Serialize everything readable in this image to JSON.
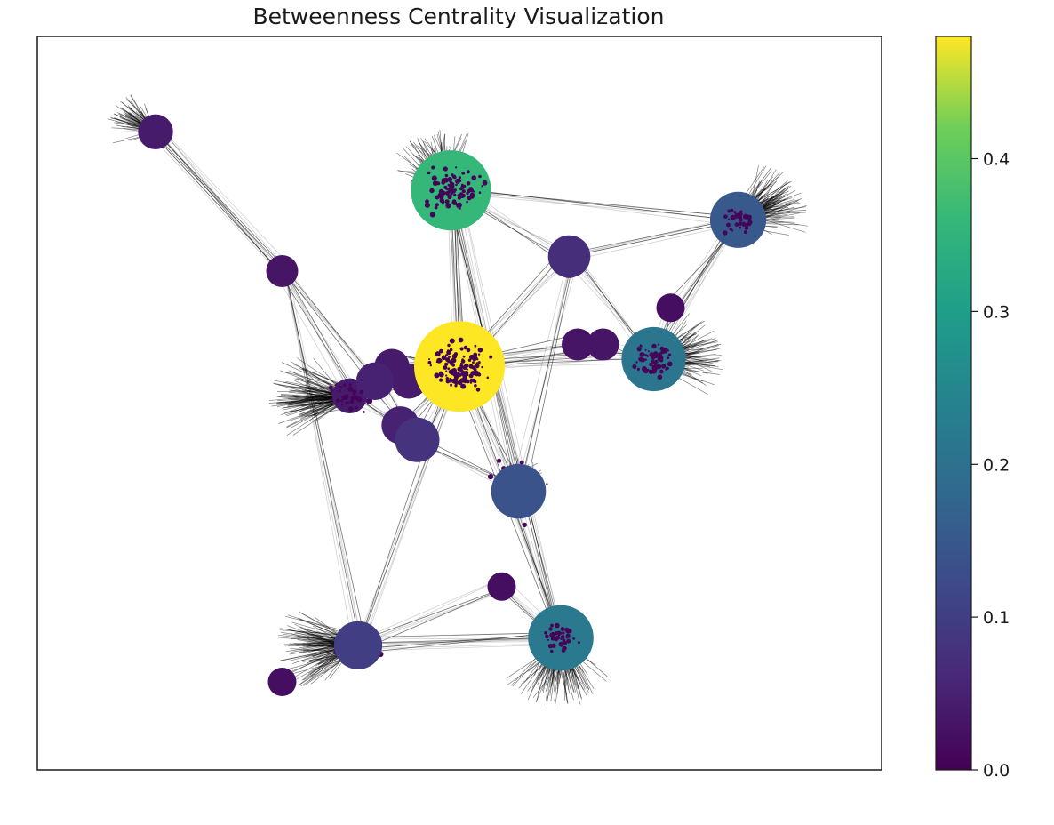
{
  "chart_data": {
    "type": "network",
    "title": "Betweenness Centrality Visualization",
    "xlabel": "",
    "ylabel": "",
    "colormap": "viridis",
    "colorbar": {
      "range": [
        0.0,
        0.48
      ],
      "ticks": [
        0.0,
        0.1,
        0.2,
        0.3,
        0.4
      ],
      "tick_labels": [
        "0.0",
        "0.1",
        "0.2",
        "0.3",
        "0.4"
      ]
    },
    "grid": false,
    "axes_ticks_visible": false,
    "xlim": [
      0,
      1
    ],
    "ylim": [
      0,
      1
    ],
    "hubs": [
      {
        "id": "h1",
        "x": 0.5,
        "y": 0.55,
        "centrality": 0.48
      },
      {
        "id": "h2",
        "x": 0.49,
        "y": 0.79,
        "centrality": 0.36
      },
      {
        "id": "h3",
        "x": 0.73,
        "y": 0.56,
        "centrality": 0.21
      },
      {
        "id": "h4",
        "x": 0.62,
        "y": 0.18,
        "centrality": 0.22
      },
      {
        "id": "h5",
        "x": 0.83,
        "y": 0.75,
        "centrality": 0.15
      },
      {
        "id": "h6",
        "x": 0.57,
        "y": 0.38,
        "centrality": 0.14
      },
      {
        "id": "h7",
        "x": 0.38,
        "y": 0.17,
        "centrality": 0.1
      },
      {
        "id": "h8",
        "x": 0.45,
        "y": 0.45,
        "centrality": 0.08
      },
      {
        "id": "h9",
        "x": 0.63,
        "y": 0.7,
        "centrality": 0.07
      },
      {
        "id": "h10",
        "x": 0.43,
        "y": 0.47,
        "centrality": 0.05
      },
      {
        "id": "h11",
        "x": 0.14,
        "y": 0.87,
        "centrality": 0.04
      },
      {
        "id": "h12",
        "x": 0.29,
        "y": 0.68,
        "centrality": 0.03
      },
      {
        "id": "h13",
        "x": 0.37,
        "y": 0.51,
        "centrality": 0.04
      },
      {
        "id": "h14",
        "x": 0.4,
        "y": 0.53,
        "centrality": 0.05
      },
      {
        "id": "h15",
        "x": 0.44,
        "y": 0.53,
        "centrality": 0.04
      },
      {
        "id": "h16",
        "x": 0.64,
        "y": 0.58,
        "centrality": 0.03
      },
      {
        "id": "h17",
        "x": 0.67,
        "y": 0.58,
        "centrality": 0.03
      },
      {
        "id": "h18",
        "x": 0.75,
        "y": 0.63,
        "centrality": 0.02
      },
      {
        "id": "h19",
        "x": 0.63,
        "y": 0.69,
        "centrality": 0.02
      },
      {
        "id": "h20",
        "x": 0.55,
        "y": 0.25,
        "centrality": 0.02
      },
      {
        "id": "h21",
        "x": 0.29,
        "y": 0.12,
        "centrality": 0.02
      },
      {
        "id": "h22",
        "x": 0.42,
        "y": 0.55,
        "centrality": 0.04
      }
    ],
    "edges": [
      [
        "h1",
        "h2"
      ],
      [
        "h1",
        "h3"
      ],
      [
        "h1",
        "h4"
      ],
      [
        "h1",
        "h6"
      ],
      [
        "h1",
        "h8"
      ],
      [
        "h1",
        "h9"
      ],
      [
        "h1",
        "h10"
      ],
      [
        "h1",
        "h13"
      ],
      [
        "h1",
        "h16"
      ],
      [
        "h1",
        "h17"
      ],
      [
        "h1",
        "h22"
      ],
      [
        "h1",
        "h15"
      ],
      [
        "h2",
        "h9"
      ],
      [
        "h2",
        "h5"
      ],
      [
        "h2",
        "h6"
      ],
      [
        "h2",
        "h1"
      ],
      [
        "h3",
        "h5"
      ],
      [
        "h3",
        "h17"
      ],
      [
        "h3",
        "h18"
      ],
      [
        "h5",
        "h18"
      ],
      [
        "h5",
        "h9"
      ],
      [
        "h6",
        "h4"
      ],
      [
        "h6",
        "h8"
      ],
      [
        "h4",
        "h20"
      ],
      [
        "h4",
        "h7"
      ],
      [
        "h7",
        "h12"
      ],
      [
        "h7",
        "h20"
      ],
      [
        "h7",
        "h4"
      ],
      [
        "h12",
        "h11"
      ],
      [
        "h12",
        "h13"
      ],
      [
        "h12",
        "h14"
      ],
      [
        "h8",
        "h14"
      ],
      [
        "h10",
        "h13"
      ],
      [
        "h11",
        "h12"
      ],
      [
        "h9",
        "h3"
      ],
      [
        "h6",
        "h19"
      ],
      [
        "h16",
        "h17"
      ],
      [
        "h2",
        "h4"
      ],
      [
        "h1",
        "h7"
      ],
      [
        "h14",
        "h15"
      ],
      [
        "h22",
        "h13"
      ]
    ],
    "clusters": [
      {
        "hub": "h2",
        "count": 200,
        "spread": 0.05,
        "leaf_count": 80,
        "leaf_reach": 0.07,
        "angle": 2.0
      },
      {
        "hub": "h1",
        "count": 260,
        "spread": 0.05,
        "leaf_count": 70,
        "leaf_reach": 0.06,
        "angle": 3.4
      },
      {
        "hub": "h3",
        "count": 120,
        "spread": 0.035,
        "leaf_count": 90,
        "leaf_reach": 0.07,
        "angle": 0.2
      },
      {
        "hub": "h4",
        "count": 90,
        "spread": 0.03,
        "leaf_count": 110,
        "leaf_reach": 0.08,
        "angle": -1.6
      },
      {
        "hub": "h5",
        "count": 60,
        "spread": 0.03,
        "leaf_count": 110,
        "leaf_reach": 0.07,
        "angle": 0.5
      },
      {
        "hub": "h7",
        "count": 40,
        "spread": 0.03,
        "leaf_count": 120,
        "leaf_reach": 0.08,
        "angle": 3.3
      },
      {
        "hub": "h13",
        "count": 60,
        "spread": 0.03,
        "leaf_count": 120,
        "leaf_reach": 0.08,
        "angle": 3.2
      },
      {
        "hub": "h11",
        "count": 5,
        "spread": 0.01,
        "leaf_count": 60,
        "leaf_reach": 0.05,
        "angle": 2.6
      },
      {
        "hub": "h6",
        "count": 40,
        "spread": 0.06,
        "leaf_count": 30,
        "leaf_reach": 0.04,
        "angle": 1.6
      }
    ]
  }
}
